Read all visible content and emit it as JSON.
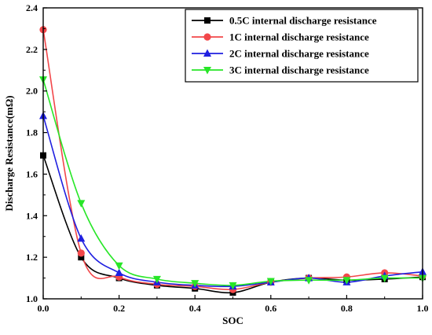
{
  "chart_data": {
    "type": "line",
    "xlabel": "SOC",
    "ylabel": "Discharge Resistance(mΩ)",
    "xlim": [
      0,
      1
    ],
    "ylim": [
      1.0,
      2.4
    ],
    "xticks": [
      "0.0",
      "0.2",
      "0.4",
      "0.6",
      "0.8",
      "1.0"
    ],
    "yticks": [
      "1.0",
      "1.2",
      "1.4",
      "1.6",
      "1.8",
      "2.0",
      "2.2",
      "2.4"
    ],
    "grid": false,
    "legend_position": "top-right",
    "x": [
      0.0,
      0.1,
      0.2,
      0.3,
      0.4,
      0.5,
      0.6,
      0.7,
      0.8,
      0.9,
      1.0
    ],
    "series": [
      {
        "name": "0.5C internal discharge resistance",
        "color": "#000000",
        "marker": "square",
        "values": [
          1.69,
          1.2,
          1.1,
          1.065,
          1.05,
          1.03,
          1.08,
          1.1,
          1.09,
          1.095,
          1.105
        ]
      },
      {
        "name": "1C internal discharge resistance",
        "color": "#f2474a",
        "marker": "circle",
        "values": [
          2.295,
          1.22,
          1.105,
          1.07,
          1.06,
          1.045,
          1.08,
          1.1,
          1.105,
          1.125,
          1.11
        ]
      },
      {
        "name": "2C internal discharge resistance",
        "color": "#1f1fe0",
        "marker": "triangle-up",
        "values": [
          1.88,
          1.29,
          1.125,
          1.08,
          1.065,
          1.06,
          1.08,
          1.1,
          1.08,
          1.11,
          1.13
        ]
      },
      {
        "name": "3C internal discharge resistance",
        "color": "#27e627",
        "marker": "triangle-down",
        "values": [
          2.055,
          1.46,
          1.16,
          1.095,
          1.075,
          1.065,
          1.085,
          1.09,
          1.09,
          1.1,
          1.1
        ]
      }
    ]
  }
}
